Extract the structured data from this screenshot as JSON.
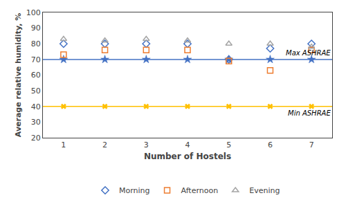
{
  "chart_data": {
    "type": "scatter",
    "x_label": "Number of Hostels",
    "y_label": "Average relative humidity, %",
    "x": [
      1,
      2,
      3,
      4,
      5,
      6,
      7
    ],
    "series": [
      {
        "name": "Morning",
        "color": "#4472C4",
        "marker": "diamond",
        "values": [
          80,
          80,
          80,
          80,
          70,
          77,
          80
        ]
      },
      {
        "name": "Afternoon",
        "color": "#ED7D31",
        "marker": "square",
        "values": [
          73,
          76,
          76,
          76,
          69,
          63,
          76
        ]
      },
      {
        "name": "Evening",
        "color": "#A5A5A5",
        "marker": "triangle-up",
        "values": [
          83,
          82,
          83,
          82,
          80,
          80,
          78
        ]
      }
    ],
    "reference_lines": [
      {
        "label": "Max ASHRAE",
        "value": 70,
        "color": "#4472C4",
        "marker": "star"
      },
      {
        "label": "Min ASHRAE",
        "value": 40,
        "color": "#FFC000",
        "marker": "x"
      }
    ],
    "xlim": [
      0.5,
      7.5
    ],
    "xticks": [
      1,
      2,
      3,
      4,
      5,
      6,
      7
    ],
    "ylim": [
      20,
      100
    ],
    "yticks": [
      20,
      30,
      40,
      50,
      60,
      70,
      80,
      90,
      100
    ],
    "grid": false,
    "legend": "bottom"
  }
}
